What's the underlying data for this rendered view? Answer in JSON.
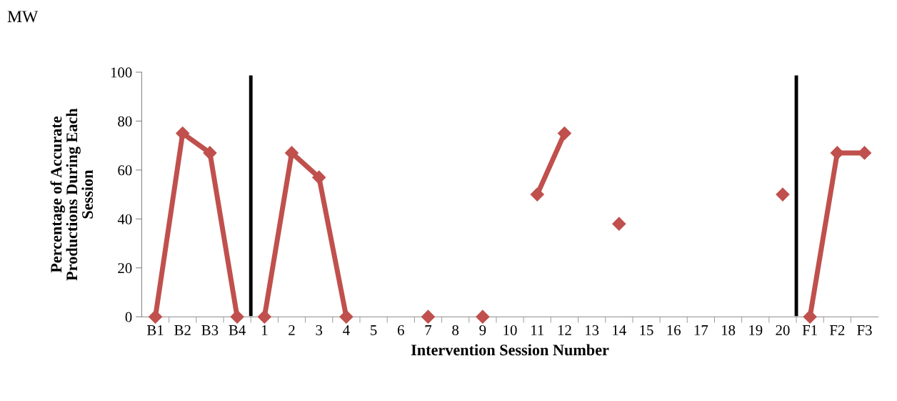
{
  "chart_data": {
    "type": "line",
    "title": "MW",
    "xlabel": "Intervention Session Number",
    "ylabel": "Percentage of Accurate\nProductions During Each\nSession",
    "categories": [
      "B1",
      "B2",
      "B3",
      "B4",
      "1",
      "2",
      "3",
      "4",
      "5",
      "6",
      "7",
      "8",
      "9",
      "10",
      "11",
      "12",
      "13",
      "14",
      "15",
      "16",
      "17",
      "18",
      "19",
      "20",
      "F1",
      "F2",
      "F3"
    ],
    "series": [
      {
        "color": "#c0504d",
        "values": [
          0,
          75,
          67,
          0,
          null,
          null,
          null,
          null,
          null,
          null,
          null,
          null,
          null,
          null,
          null,
          null,
          null,
          null,
          null,
          null,
          null,
          null,
          null,
          null,
          null,
          null,
          null
        ]
      },
      {
        "color": "#c0504d",
        "values": [
          null,
          null,
          null,
          null,
          0,
          67,
          57,
          0,
          null,
          null,
          0,
          null,
          0,
          null,
          50,
          75,
          null,
          38,
          null,
          null,
          null,
          null,
          null,
          50,
          null,
          null,
          null
        ]
      },
      {
        "color": "#c0504d",
        "values": [
          null,
          null,
          null,
          null,
          null,
          null,
          null,
          null,
          null,
          null,
          null,
          null,
          null,
          null,
          null,
          null,
          null,
          null,
          null,
          null,
          null,
          null,
          null,
          null,
          0,
          67,
          67
        ]
      }
    ],
    "ylim": [
      0,
      100
    ],
    "yticks": [
      0,
      20,
      40,
      60,
      80,
      100
    ],
    "marker": "diamond",
    "line_style": "solid",
    "grid": false,
    "legend": false
  }
}
